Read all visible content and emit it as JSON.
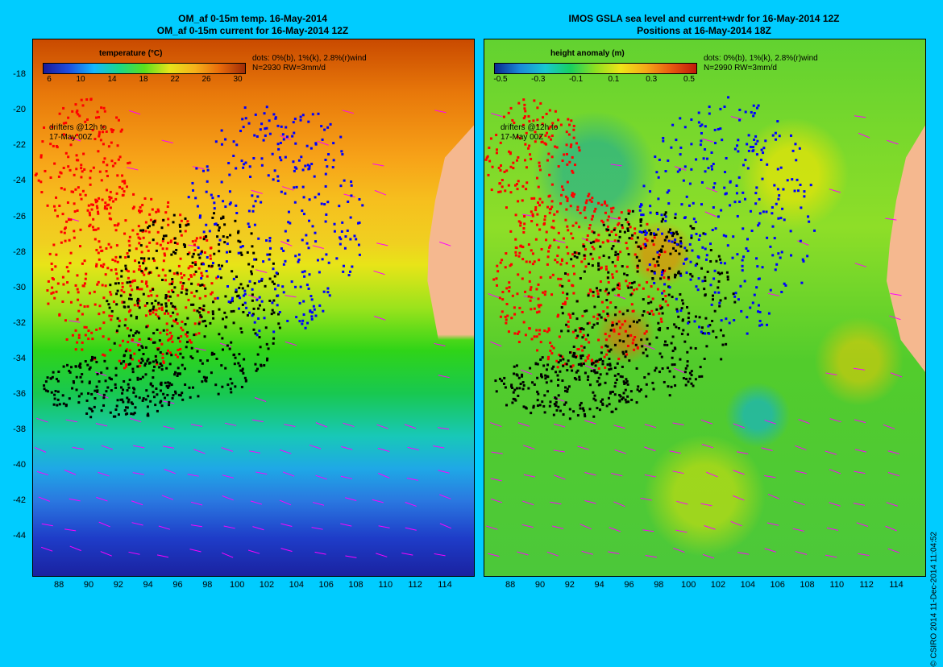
{
  "left_panel": {
    "title_line1": "OM_af 0-15m temp. 16-May-2014",
    "title_line2": "OM_af 0-15m current for 16-May-2014 12Z",
    "legend_title": "temperature (°C)",
    "legend_ticks": [
      "6",
      "10",
      "14",
      "18",
      "22",
      "26",
      "30"
    ],
    "dots_note_line1": "dots: 0%(b), 1%(k), 2.8%(r)wind",
    "dots_note_line2": "N=2930 RW=3mm/d",
    "drifters_note_line1": "drifters @12h to",
    "drifters_note_line2": "17-May 00Z",
    "y_labels": [
      "-18",
      "-20",
      "-22",
      "-24",
      "-26",
      "-28",
      "-30",
      "-32",
      "-34",
      "-36",
      "-38",
      "-40",
      "-42",
      "-44"
    ],
    "x_labels": [
      "88",
      "90",
      "92",
      "94",
      "96",
      "98",
      "100",
      "102",
      "104",
      "106",
      "108",
      "110",
      "112",
      "114"
    ]
  },
  "right_panel": {
    "title_line1": "IMOS GSLA sea level and current+wdr for 16-May-2014 12Z",
    "title_line2": "Positions at 16-May-2014 18Z",
    "legend_title": "height anomaly (m)",
    "legend_ticks": [
      "-0.5",
      "-0.3",
      "-0.1",
      "0.1",
      "0.3",
      "0.5"
    ],
    "dots_note_line1": "dots: 0%(b), 1%(k), 2.8%(r)wind",
    "dots_note_line2": "N=2990 RW=3mm/d",
    "drifters_note_line1": "drifters @12h to",
    "drifters_note_line2": "17-May 00Z",
    "x_labels": [
      "88",
      "90",
      "92",
      "94",
      "96",
      "98",
      "100",
      "102",
      "104",
      "106",
      "108",
      "110",
      "112",
      "114"
    ]
  },
  "footer": {
    "credit": "© CSIRO 2014   11-Dec-2014 11:04:52"
  },
  "colors": {
    "background": "#00ccff",
    "land": "#f5b88f",
    "dots_blue": "#0000ff",
    "dots_black": "#000000",
    "dots_red": "#ff0000",
    "wind_vectors": "#ff00ff"
  },
  "map_extent": {
    "lon_min": 86.2,
    "lon_max": 115.9,
    "lat_min": -46.2,
    "lat_max": -16.0
  }
}
